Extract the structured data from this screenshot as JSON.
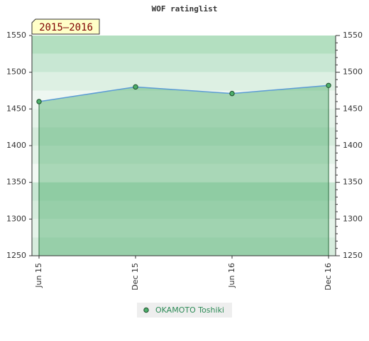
{
  "chart_data": {
    "type": "line",
    "title": "WOF ratinglist",
    "period_label": "2015–2016",
    "categories": [
      "Jun 15",
      "Dec 15",
      "Jun 16",
      "Dec 16"
    ],
    "series": [
      {
        "name": "OKAMOTO Toshiki",
        "color": "#5b9bd5",
        "values": [
          1460,
          1480,
          1471,
          1482
        ]
      }
    ],
    "ylim": [
      1250,
      1550
    ],
    "yticks": [
      1250,
      1300,
      1350,
      1400,
      1450,
      1500,
      1550
    ],
    "y2lim": [
      1250,
      1550
    ],
    "y2ticks": [
      1250,
      1300,
      1350,
      1400,
      1450,
      1500,
      1550
    ]
  }
}
